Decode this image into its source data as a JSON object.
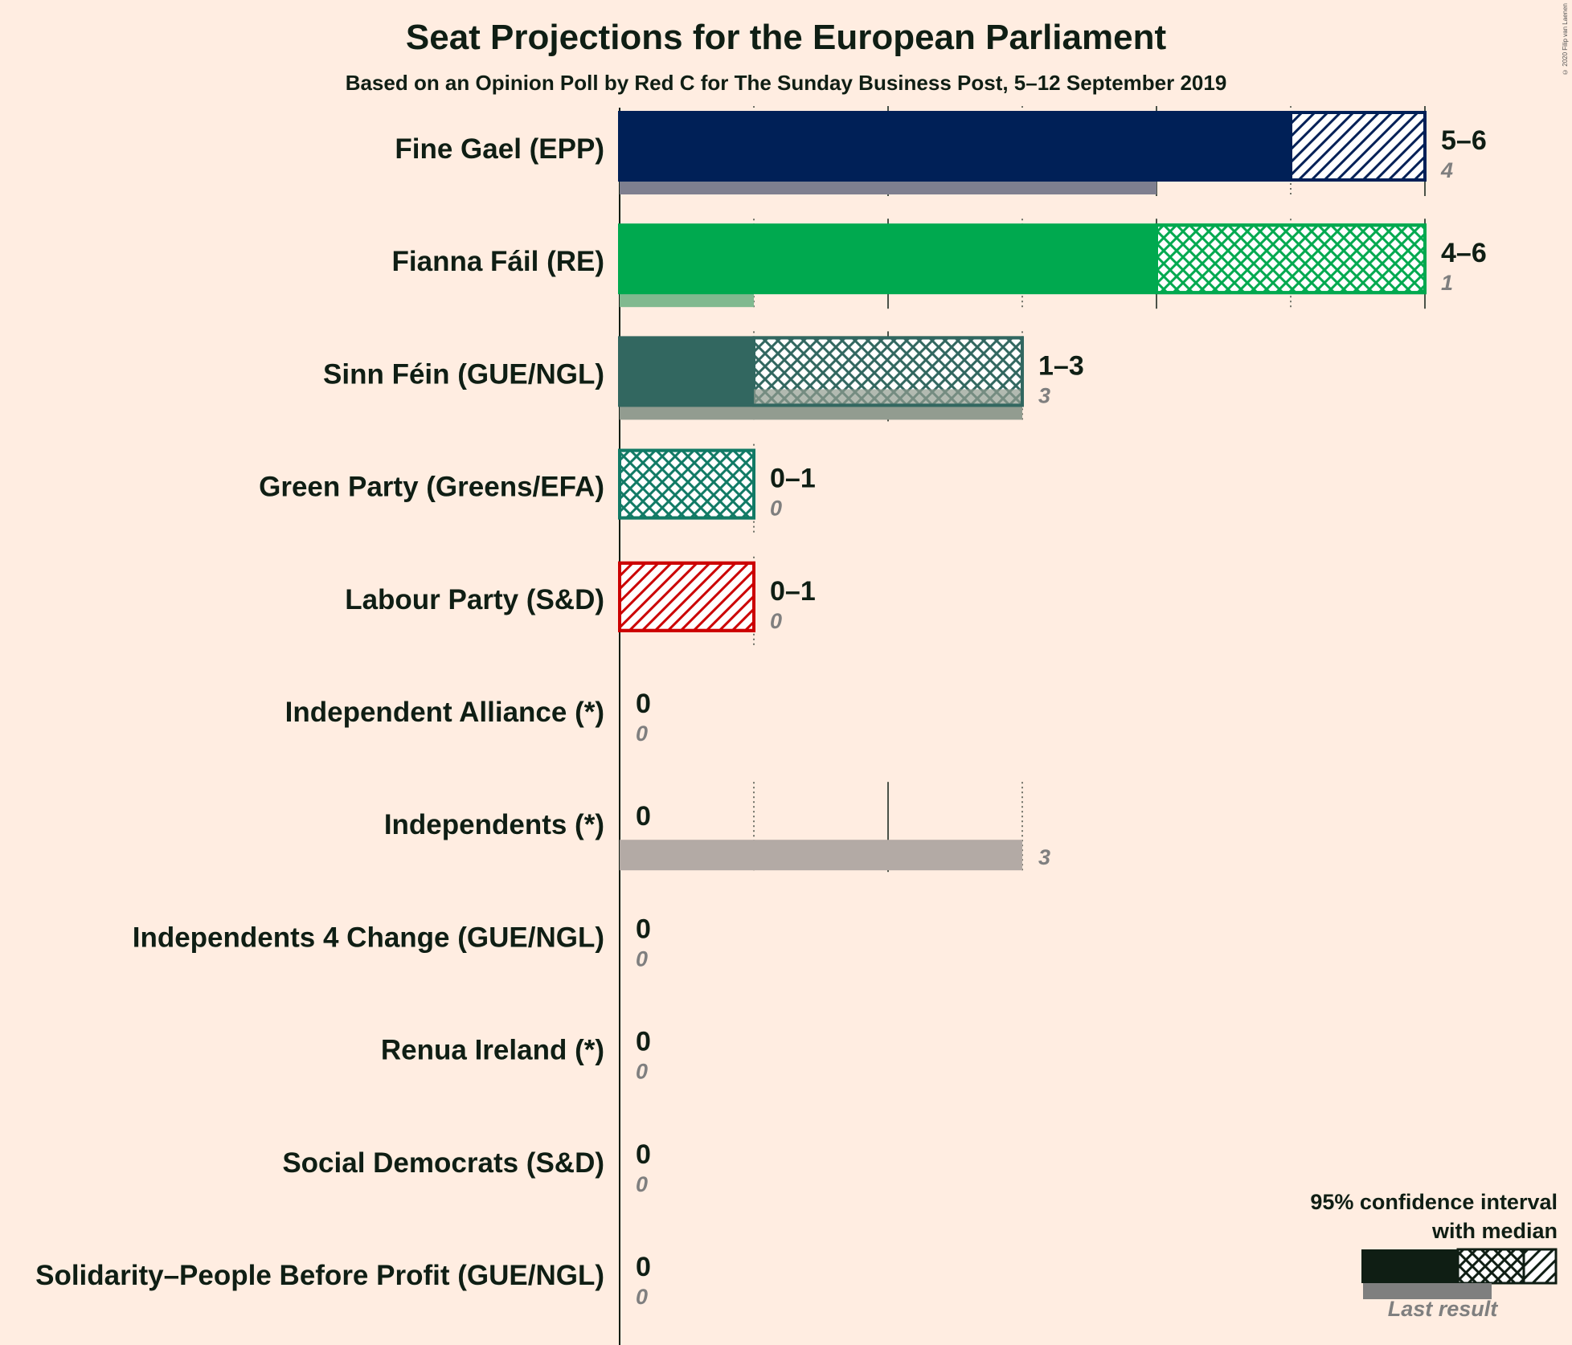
{
  "title": "Seat Projections for the European Parliament",
  "subtitle": "Based on an Opinion Poll by Red C for The Sunday Business Post, 5–12 September 2019",
  "copyright": "© 2020 Filip van Laenen",
  "legend": {
    "line1": "95% confidence interval",
    "line2": "with median",
    "last_result": "Last result"
  },
  "chart_data": {
    "type": "bar",
    "orientation": "horizontal",
    "title": "Seat Projections for the European Parliament",
    "subtitle": "Based on an Opinion Poll by Red C for The Sunday Business Post, 5–12 September 2019",
    "xlim": [
      0,
      6
    ],
    "grid": true,
    "legend_position": "bottom-right",
    "parties": [
      {
        "name": "Fine Gael (EPP)",
        "low": 5,
        "median": 5,
        "high": 6,
        "range_label": "5–6",
        "last": 4,
        "last_label": "4",
        "color": "#002057",
        "last_color": "#7F7F8F"
      },
      {
        "name": "Fianna Fáil (RE)",
        "low": 4,
        "median": 4,
        "high": 6,
        "range_label": "4–6",
        "last": 1,
        "last_label": "1",
        "color": "#00A94F",
        "last_color": "#80B98F"
      },
      {
        "name": "Sinn Féin (GUE/NGL)",
        "low": 1,
        "median": 1,
        "high": 3,
        "range_label": "1–3",
        "last": 3,
        "last_label": "3",
        "color": "#326760",
        "last_color": "#929C90"
      },
      {
        "name": "Green Party (Greens/EFA)",
        "low": 0,
        "median": 0,
        "high": 1,
        "range_label": "0–1",
        "last": 0,
        "last_label": "0",
        "color": "#117A65",
        "last_color": "#889C88"
      },
      {
        "name": "Labour Party (S&D)",
        "low": 0,
        "median": 0,
        "high": 1,
        "range_label": "0–1",
        "last": 0,
        "last_label": "0",
        "color": "#CC0000",
        "last_color": "#A88888"
      },
      {
        "name": "Independent Alliance (*)",
        "low": 0,
        "median": 0,
        "high": 0,
        "range_label": "0",
        "last": 0,
        "last_label": "0",
        "color": "#999999",
        "last_color": "#B3AAA5"
      },
      {
        "name": "Independents (*)",
        "low": 0,
        "median": 0,
        "high": 0,
        "range_label": "0",
        "last": 3,
        "last_label": "3",
        "color": "#999999",
        "last_color": "#B3AAA5"
      },
      {
        "name": "Independents 4 Change (GUE/NGL)",
        "low": 0,
        "median": 0,
        "high": 0,
        "range_label": "0",
        "last": 0,
        "last_label": "0",
        "color": "#999999",
        "last_color": "#B3AAA5"
      },
      {
        "name": "Renua Ireland (*)",
        "low": 0,
        "median": 0,
        "high": 0,
        "range_label": "0",
        "last": 0,
        "last_label": "0",
        "color": "#999999",
        "last_color": "#B3AAA5"
      },
      {
        "name": "Social Democrats (S&D)",
        "low": 0,
        "median": 0,
        "high": 0,
        "range_label": "0",
        "last": 0,
        "last_label": "0",
        "color": "#999999",
        "last_color": "#B3AAA5"
      },
      {
        "name": "Solidarity–People Before Profit (GUE/NGL)",
        "low": 0,
        "median": 0,
        "high": 0,
        "range_label": "0",
        "last": 0,
        "last_label": "0",
        "color": "#999999",
        "last_color": "#B3AAA5"
      }
    ]
  }
}
